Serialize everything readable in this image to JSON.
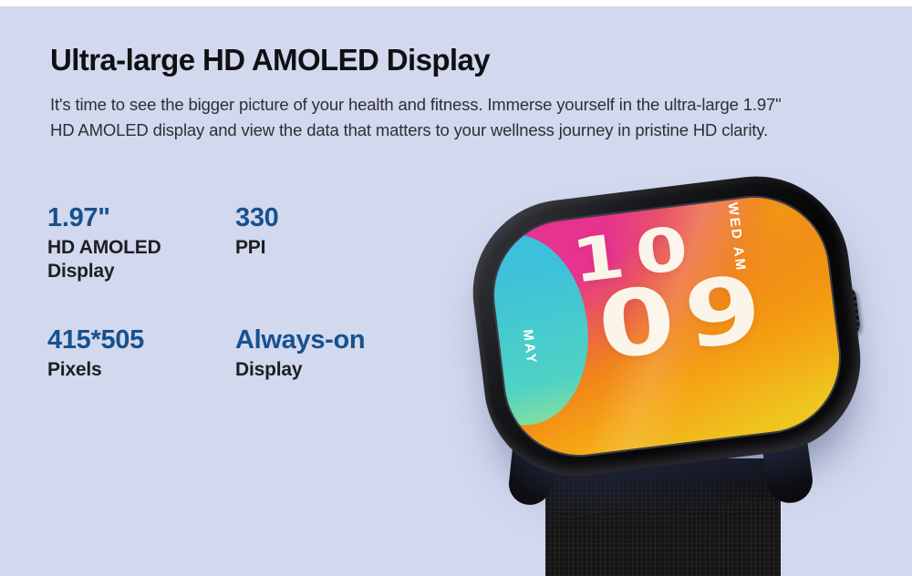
{
  "page": {
    "background_color": "#d2d8ee",
    "top_strip_color": "#ffffff"
  },
  "header": {
    "title": "Ultra-large HD AMOLED Display",
    "description_lines": [
      "It's time to see the bigger picture of your health and fitness. Immerse yourself in the ultra-large 1.97\"",
      "HD AMOLED display and view the data that matters to your wellness journey in pristine HD clarity."
    ]
  },
  "specs": {
    "accent_color": "#17518d",
    "label_color": "#1d1e23",
    "items": [
      {
        "value": "1.97\"",
        "label": "HD AMOLED\nDisplay"
      },
      {
        "value": "330",
        "label": "PPI"
      },
      {
        "value": "415*505",
        "label": "Pixels"
      },
      {
        "value": "Always-on",
        "label": "Display"
      }
    ]
  },
  "watch": {
    "hours": "10",
    "minutes": "09",
    "day_meridiem": "WED AM",
    "month": "MAY",
    "colors": {
      "case": "#0b0b0d",
      "strap": "#151515",
      "screen_pink": "#e5338f",
      "screen_orange": "#f5a313",
      "screen_yellow": "#efc51f",
      "screen_teal": "#4fd2c4",
      "digits": "#fbf4e9"
    }
  }
}
